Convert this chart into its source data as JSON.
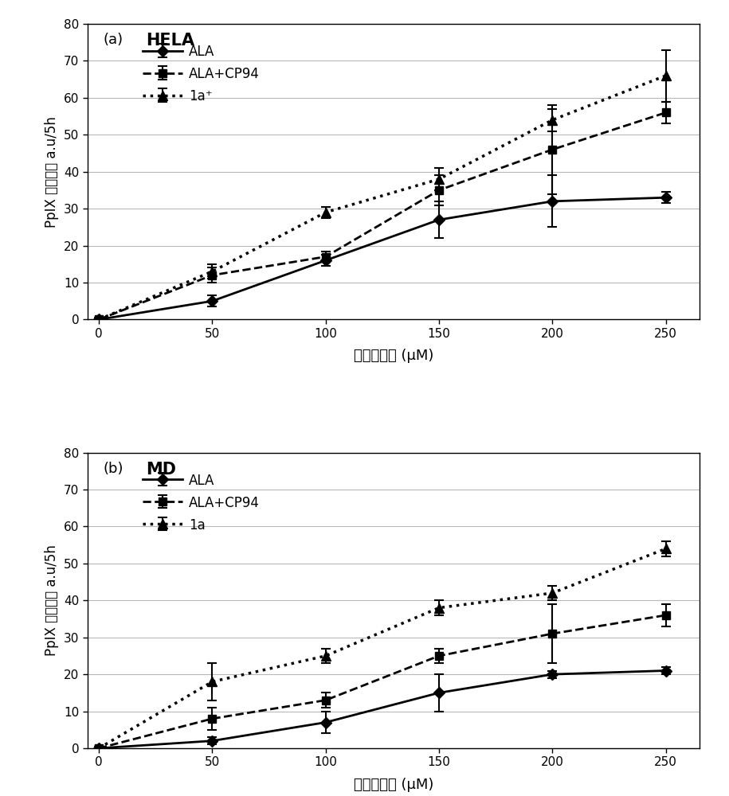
{
  "panel_a": {
    "title": "HELA",
    "label": "(a)",
    "x": [
      0,
      50,
      100,
      150,
      200,
      250
    ],
    "ALA_y": [
      0,
      5,
      16,
      27,
      32,
      33
    ],
    "ALA_yerr": [
      0.5,
      1.5,
      1.5,
      5,
      7,
      1.5
    ],
    "ALA_CP94_y": [
      0,
      12,
      17,
      35,
      46,
      56
    ],
    "ALA_CP94_yerr": [
      0.5,
      2,
      1.5,
      4,
      12,
      3
    ],
    "1a_y": [
      0,
      13,
      29,
      38,
      54,
      66
    ],
    "1a_yerr": [
      0.5,
      2,
      1.5,
      3,
      3,
      7
    ],
    "legend_label_1a": "1a⁺",
    "ylim": [
      0,
      80
    ],
    "yticks": [
      0,
      10,
      20,
      30,
      40,
      50,
      60,
      70,
      80
    ]
  },
  "panel_b": {
    "title": "MD",
    "label": "(b)",
    "x": [
      0,
      50,
      100,
      150,
      200,
      250
    ],
    "ALA_y": [
      0,
      2,
      7,
      15,
      20,
      21
    ],
    "ALA_yerr": [
      0.5,
      1,
      3,
      5,
      1,
      1
    ],
    "ALA_CP94_y": [
      0,
      8,
      13,
      25,
      31,
      36
    ],
    "ALA_CP94_yerr": [
      0.5,
      3,
      2,
      2,
      8,
      3
    ],
    "1a_y": [
      0,
      18,
      25,
      38,
      42,
      54
    ],
    "1a_yerr": [
      0.5,
      5,
      2,
      2,
      2,
      2
    ],
    "legend_label_1a": "1a",
    "ylim": [
      0,
      80
    ],
    "yticks": [
      0,
      10,
      20,
      30,
      40,
      50,
      60,
      70,
      80
    ]
  },
  "xlabel": "化合物浓度 (μM)",
  "ylabel": "PpIX 荧光强度 a.u/5h",
  "xticks": [
    0,
    50,
    100,
    150,
    200,
    250
  ],
  "background_color": "#ffffff"
}
